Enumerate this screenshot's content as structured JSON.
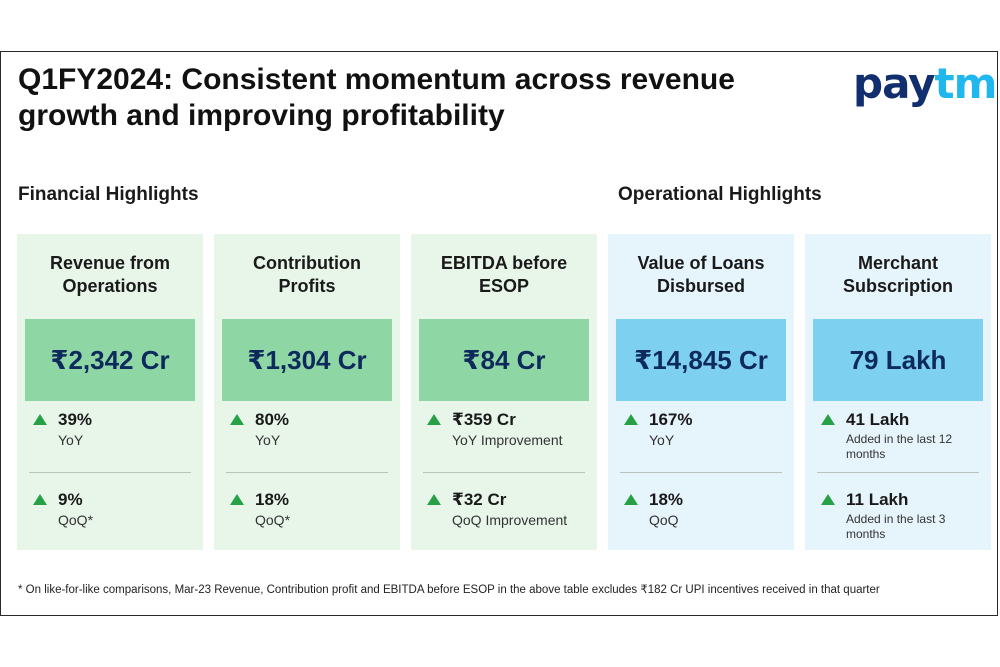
{
  "title_line1": "Q1FY2024: Consistent momentum across revenue",
  "title_line2": "growth and improving profitability",
  "logo": {
    "part1": "pay",
    "part2": "tm"
  },
  "financial_title": "Financial Highlights",
  "operational_title": "Operational Highlights",
  "cards": [
    {
      "title1": "Revenue from",
      "title2": "Operations",
      "value": "₹2,342 Cr",
      "m1_value": "39%",
      "m1_label": "YoY",
      "m2_value": "9%",
      "m2_label": "QoQ*"
    },
    {
      "title1": "Contribution",
      "title2": "Profits",
      "value": "₹1,304 Cr",
      "m1_value": "80%",
      "m1_label": "YoY",
      "m2_value": "18%",
      "m2_label": "QoQ*"
    },
    {
      "title1": "EBITDA before",
      "title2": "ESOP",
      "value": "₹84 Cr",
      "m1_value": "₹359 Cr",
      "m1_label": "YoY Improvement",
      "m2_value": "₹32 Cr",
      "m2_label": "QoQ Improvement"
    },
    {
      "title1": "Value of Loans",
      "title2": "Disbursed",
      "value": "₹14,845 Cr",
      "m1_value": "167%",
      "m1_label": "YoY",
      "m2_value": "18%",
      "m2_label": "QoQ"
    },
    {
      "title1": "Merchant",
      "title2": "Subscription",
      "value": "79 Lakh",
      "m1_value": "41 Lakh",
      "m1_label": "Added in the last 12 months",
      "m2_value": "11 Lakh",
      "m2_label": "Added in the last 3 months"
    }
  ],
  "footnote": "* On like-for-like comparisons, Mar-23 Revenue, Contribution profit and EBITDA before ESOP in the above table excludes ₹182 Cr UPI incentives received in that quarter",
  "colors": {
    "financial_card_bg": "#e8f6ea",
    "financial_value_bg": "#8ed7a4",
    "operational_card_bg": "#e6f4fb",
    "operational_value_bg": "#7ed0f0",
    "up_arrow": "#27a146",
    "value_text": "#0e2a5c"
  },
  "icons": {
    "trend": "up-triangle-icon"
  }
}
